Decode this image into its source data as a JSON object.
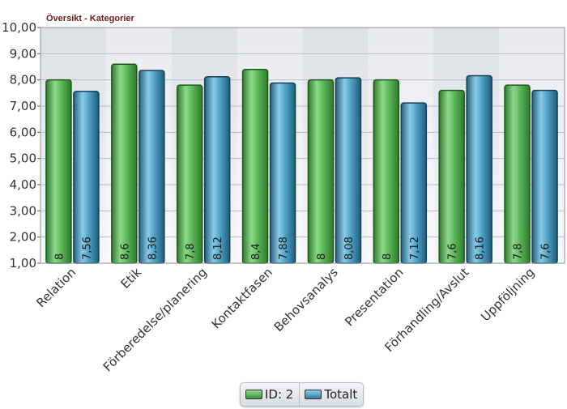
{
  "chart_data": {
    "type": "bar",
    "title": "Översikt - Kategorier",
    "categories": [
      "Relation",
      "Etik",
      "Förberedelse/planering",
      "Kontaktfasen",
      "Behovsanalys",
      "Presentation",
      "Förhandling/Avslut",
      "Uppföljning"
    ],
    "series": [
      {
        "name": "ID: 2",
        "values": [
          8,
          8.6,
          7.8,
          8.4,
          8,
          8,
          7.6,
          7.8
        ],
        "labels": [
          "8",
          "8,6",
          "7,8",
          "8,4",
          "8",
          "8",
          "7,6",
          "7,8"
        ],
        "color": "#5cb85a"
      },
      {
        "name": "Totalt",
        "values": [
          7.56,
          8.36,
          8.12,
          7.88,
          8.08,
          7.12,
          8.16,
          7.6
        ],
        "labels": [
          "7,56",
          "8,36",
          "8,12",
          "7,88",
          "8,08",
          "7,12",
          "8,16",
          "7,6"
        ],
        "color": "#4fa3c8"
      }
    ],
    "y_ticks": [
      "1,00",
      "2,00",
      "3,00",
      "4,00",
      "5,00",
      "6,00",
      "7,00",
      "8,00",
      "9,00",
      "10,00"
    ],
    "ylim": [
      1,
      10
    ],
    "grid": true,
    "legend": "bottom-center"
  }
}
